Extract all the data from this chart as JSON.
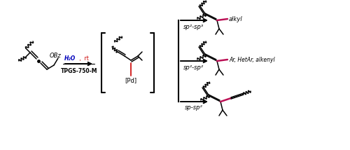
{
  "bg_color": "#ffffff",
  "text_color": "#000000",
  "blue_color": "#0000bb",
  "red_color": "#cc0000",
  "pink_color": "#bb1155",
  "arrow_label_1": "sp-sp²",
  "arrow_label_2": "sp²-sp²",
  "arrow_label_3": "sp²-sp³",
  "reagent_line1": "TPGS-750-M",
  "reagent_line2": "H₂O",
  "reagent_line2b": " ,  rt",
  "pd_label": "[Pd]",
  "obz_label": "OBz",
  "label_ar": "Ar, HetAr, alkenyl",
  "label_alkyl": "alkyl",
  "figsize": [
    5.0,
    2.14
  ],
  "dpi": 100
}
